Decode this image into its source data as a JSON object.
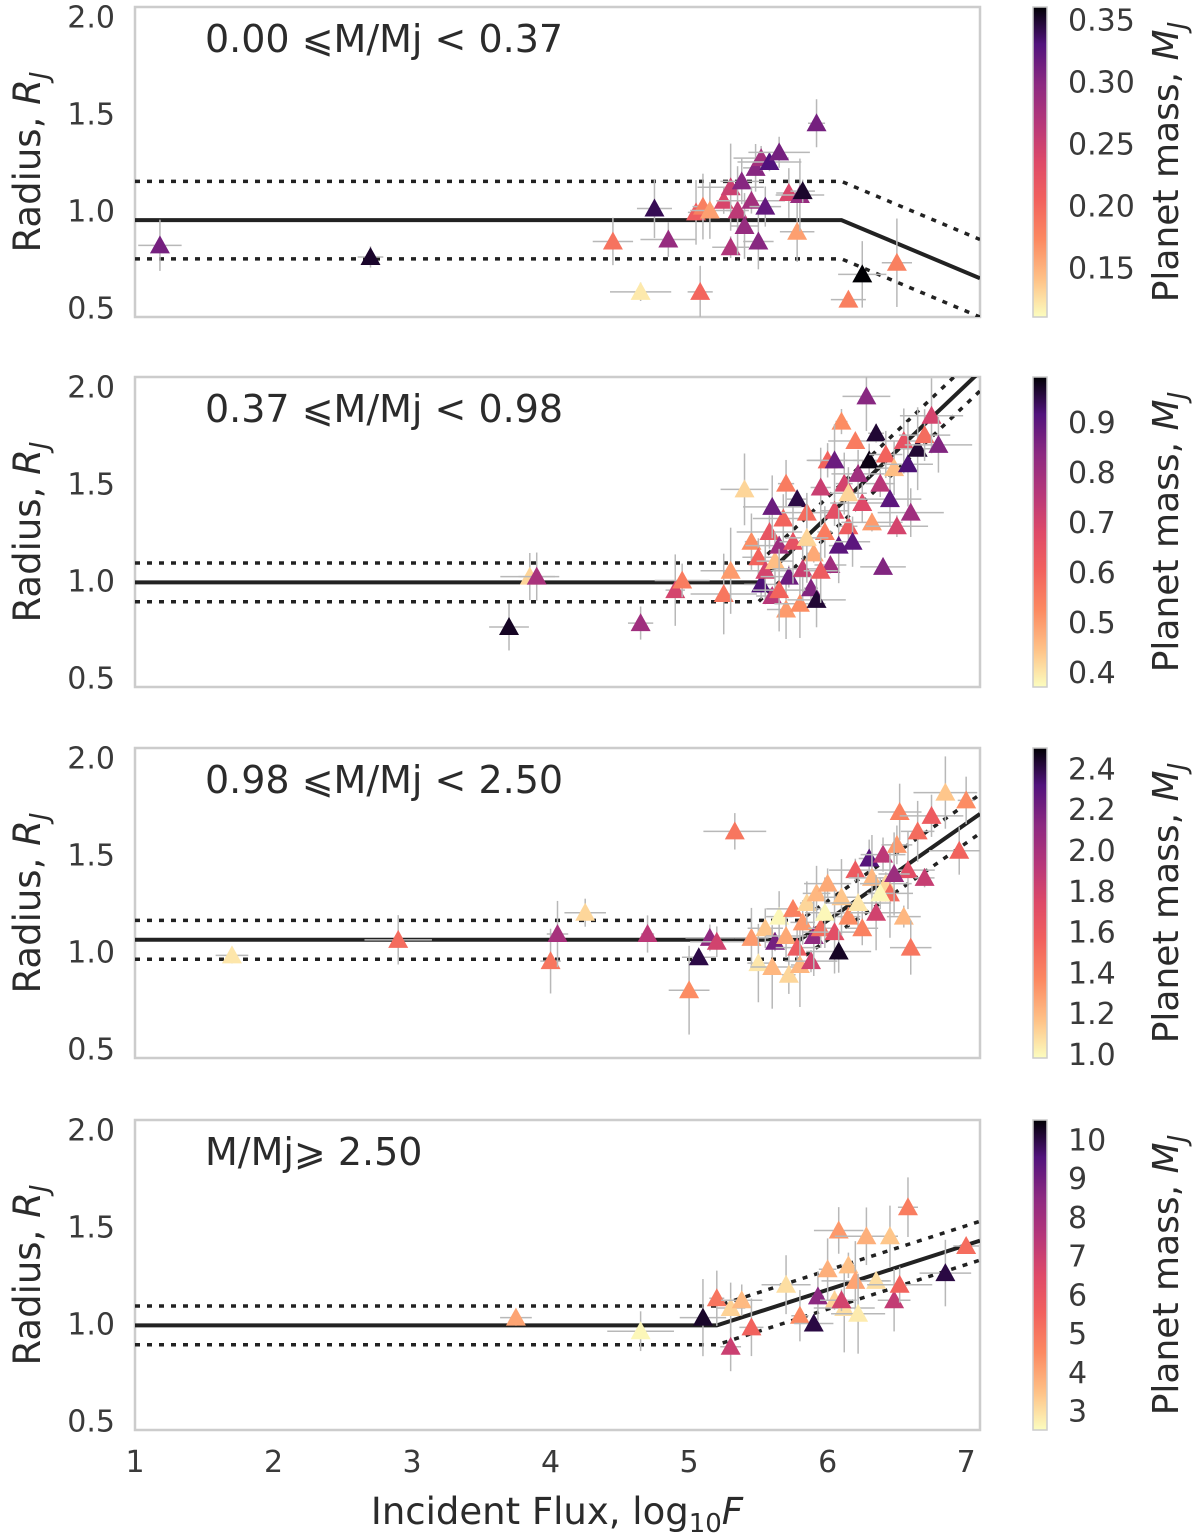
{
  "chart_data": [
    {
      "type": "scatter",
      "title": "0.00 ⩽M/Mj < 0.37",
      "xlabel": "Incident Flux, log10F",
      "ylabel": "Radius, RJ",
      "xlim": [
        1,
        7.1
      ],
      "ylim": [
        0.45,
        2.05
      ],
      "yticks": [
        "2.0",
        "1.5",
        "1.0",
        "0.5"
      ],
      "yticks_values": [
        2.0,
        1.5,
        1.0,
        0.5
      ],
      "colorbar_label": "Planet mass, MJ",
      "colorbar_range": [
        0.11,
        0.36
      ],
      "colorbar_ticks": [
        "0.35",
        "0.30",
        "0.25",
        "0.20",
        "0.15"
      ],
      "colorbar_ticks_values": [
        0.35,
        0.3,
        0.25,
        0.2,
        0.15
      ],
      "fit": {
        "break_x": 6.1,
        "level": 0.95,
        "slope": -0.3,
        "band": 0.2
      },
      "points": [
        [
          1.18,
          0.82,
          0.31
        ],
        [
          2.7,
          0.76,
          0.35
        ],
        [
          4.45,
          0.84,
          0.19
        ],
        [
          4.65,
          0.58,
          0.12
        ],
        [
          4.75,
          1.01,
          0.34
        ],
        [
          4.85,
          0.85,
          0.29
        ],
        [
          5.05,
          0.99,
          0.21
        ],
        [
          5.08,
          0.58,
          0.2
        ],
        [
          5.1,
          1.02,
          0.18
        ],
        [
          5.15,
          1.0,
          0.16
        ],
        [
          5.25,
          1.05,
          0.24
        ],
        [
          5.3,
          1.12,
          0.25
        ],
        [
          5.3,
          0.81,
          0.27
        ],
        [
          5.35,
          1.0,
          0.26
        ],
        [
          5.38,
          1.15,
          0.3
        ],
        [
          5.4,
          0.92,
          0.29
        ],
        [
          5.45,
          1.05,
          0.28
        ],
        [
          5.48,
          1.22,
          0.3
        ],
        [
          5.5,
          0.84,
          0.3
        ],
        [
          5.52,
          1.27,
          0.28
        ],
        [
          5.55,
          1.02,
          0.32
        ],
        [
          5.58,
          1.25,
          0.33
        ],
        [
          5.65,
          1.3,
          0.31
        ],
        [
          5.72,
          1.09,
          0.24
        ],
        [
          5.78,
          0.89,
          0.16
        ],
        [
          5.8,
          1.08,
          0.29
        ],
        [
          5.82,
          1.1,
          0.35
        ],
        [
          5.92,
          1.45,
          0.31
        ],
        [
          6.15,
          0.54,
          0.18
        ],
        [
          6.25,
          0.67,
          0.36
        ],
        [
          6.5,
          0.73,
          0.18
        ]
      ]
    },
    {
      "type": "scatter",
      "title": "0.37 ⩽M/Mj < 0.98",
      "xlabel": "Incident Flux, log10F",
      "ylabel": "Radius, RJ",
      "xlim": [
        1,
        7.1
      ],
      "ylim": [
        0.45,
        2.05
      ],
      "yticks": [
        "2.0",
        "1.5",
        "1.0",
        "0.5"
      ],
      "yticks_values": [
        2.0,
        1.5,
        1.0,
        0.5
      ],
      "colorbar_label": "Planet mass, MJ",
      "colorbar_range": [
        0.37,
        0.99
      ],
      "colorbar_ticks": [
        "0.9",
        "0.8",
        "0.7",
        "0.6",
        "0.5",
        "0.4"
      ],
      "colorbar_ticks_values": [
        0.9,
        0.8,
        0.7,
        0.6,
        0.5,
        0.4
      ],
      "fit": {
        "break_x": 5.5,
        "level": 0.99,
        "slope": 0.68,
        "band": 0.1
      },
      "points": [
        [
          3.7,
          0.76,
          0.97
        ],
        [
          3.85,
          1.02,
          0.42
        ],
        [
          3.9,
          1.02,
          0.78
        ],
        [
          4.65,
          0.78,
          0.8
        ],
        [
          4.9,
          0.95,
          0.7
        ],
        [
          4.95,
          1.0,
          0.55
        ],
        [
          5.25,
          0.93,
          0.56
        ],
        [
          5.3,
          1.05,
          0.5
        ],
        [
          5.4,
          1.47,
          0.42
        ],
        [
          5.45,
          1.2,
          0.52
        ],
        [
          5.5,
          1.12,
          0.6
        ],
        [
          5.52,
          0.98,
          0.92
        ],
        [
          5.55,
          1.05,
          0.7
        ],
        [
          5.58,
          1.25,
          0.64
        ],
        [
          5.6,
          0.92,
          0.75
        ],
        [
          5.62,
          1.1,
          0.45
        ],
        [
          5.65,
          1.18,
          0.8
        ],
        [
          5.68,
          1.32,
          0.6
        ],
        [
          5.7,
          0.85,
          0.5
        ],
        [
          5.72,
          1.02,
          0.88
        ],
        [
          5.75,
          1.2,
          0.65
        ],
        [
          5.78,
          1.42,
          0.95
        ],
        [
          5.8,
          0.88,
          0.52
        ],
        [
          5.82,
          1.06,
          0.72
        ],
        [
          5.85,
          1.35,
          0.58
        ],
        [
          5.88,
          0.96,
          0.85
        ],
        [
          5.9,
          1.14,
          0.48
        ],
        [
          5.92,
          0.9,
          0.96
        ],
        [
          5.95,
          1.48,
          0.72
        ],
        [
          5.98,
          1.25,
          0.55
        ],
        [
          6.0,
          1.62,
          0.6
        ],
        [
          6.02,
          1.08,
          0.8
        ],
        [
          6.05,
          1.36,
          0.66
        ],
        [
          6.08,
          1.18,
          0.9
        ],
        [
          6.1,
          1.82,
          0.52
        ],
        [
          6.12,
          1.5,
          0.7
        ],
        [
          6.15,
          1.28,
          0.62
        ],
        [
          6.18,
          1.2,
          0.9
        ],
        [
          6.2,
          1.72,
          0.55
        ],
        [
          6.22,
          1.55,
          0.8
        ],
        [
          6.25,
          1.4,
          0.68
        ],
        [
          6.28,
          1.95,
          0.84
        ],
        [
          6.3,
          1.62,
          0.98
        ],
        [
          6.32,
          1.3,
          0.5
        ],
        [
          6.35,
          1.76,
          0.96
        ],
        [
          6.38,
          1.5,
          0.75
        ],
        [
          6.4,
          1.07,
          0.85
        ],
        [
          6.42,
          1.65,
          0.6
        ],
        [
          6.45,
          1.42,
          0.9
        ],
        [
          6.48,
          1.58,
          0.45
        ],
        [
          6.5,
          1.28,
          0.7
        ],
        [
          6.55,
          1.72,
          0.65
        ],
        [
          6.58,
          1.6,
          0.92
        ],
        [
          6.6,
          1.35,
          0.8
        ],
        [
          6.65,
          1.68,
          0.96
        ],
        [
          6.7,
          1.75,
          0.58
        ],
        [
          6.75,
          1.85,
          0.7
        ],
        [
          6.8,
          1.7,
          0.85
        ],
        [
          5.6,
          1.38,
          0.88
        ],
        [
          5.7,
          1.5,
          0.55
        ],
        [
          5.85,
          1.22,
          0.42
        ],
        [
          5.95,
          1.05,
          0.62
        ],
        [
          6.05,
          1.62,
          0.88
        ],
        [
          6.15,
          1.45,
          0.42
        ],
        [
          5.65,
          0.95,
          0.6
        ]
      ]
    },
    {
      "type": "scatter",
      "title": "0.98 ⩽M/Mj < 2.50",
      "xlabel": "Incident Flux, log10F",
      "ylabel": "Radius, RJ",
      "xlim": [
        1,
        7.1
      ],
      "ylim": [
        0.45,
        2.05
      ],
      "yticks": [
        "2.0",
        "1.5",
        "1.0",
        "0.5"
      ],
      "yticks_values": [
        2.0,
        1.5,
        1.0,
        0.5
      ],
      "colorbar_label": "Planet mass, MJ",
      "colorbar_range": [
        0.98,
        2.5
      ],
      "colorbar_ticks": [
        "2.4",
        "2.2",
        "2.0",
        "1.8",
        "1.6",
        "1.4",
        "1.2",
        "1.0"
      ],
      "colorbar_ticks_values": [
        2.4,
        2.2,
        2.0,
        1.8,
        1.6,
        1.4,
        1.2,
        1.0
      ],
      "fit": {
        "break_x": 5.8,
        "level": 1.06,
        "slope": 0.5,
        "band": 0.1
      },
      "points": [
        [
          1.7,
          0.98,
          1.05
        ],
        [
          2.9,
          1.06,
          1.5
        ],
        [
          4.0,
          0.95,
          1.45
        ],
        [
          4.05,
          1.09,
          2.0
        ],
        [
          4.25,
          1.2,
          1.1
        ],
        [
          4.7,
          1.09,
          1.9
        ],
        [
          5.0,
          0.8,
          1.35
        ],
        [
          5.07,
          0.97,
          2.4
        ],
        [
          5.15,
          1.07,
          2.1
        ],
        [
          5.2,
          1.05,
          1.8
        ],
        [
          5.33,
          1.62,
          1.45
        ],
        [
          5.45,
          1.07,
          1.3
        ],
        [
          5.5,
          0.94,
          1.05
        ],
        [
          5.55,
          1.12,
          1.15
        ],
        [
          5.6,
          0.92,
          1.2
        ],
        [
          5.62,
          1.05,
          2.2
        ],
        [
          5.65,
          1.18,
          1.0
        ],
        [
          5.7,
          1.08,
          1.25
        ],
        [
          5.72,
          0.88,
          1.1
        ],
        [
          5.75,
          1.22,
          1.4
        ],
        [
          5.78,
          1.02,
          1.6
        ],
        [
          5.8,
          0.93,
          1.2
        ],
        [
          5.82,
          1.15,
          1.3
        ],
        [
          5.85,
          1.25,
          1.1
        ],
        [
          5.88,
          0.95,
          1.8
        ],
        [
          5.9,
          1.08,
          2.1
        ],
        [
          5.92,
          1.3,
          1.2
        ],
        [
          5.95,
          1.12,
          1.5
        ],
        [
          5.98,
          1.2,
          1.0
        ],
        [
          6.0,
          1.35,
          1.25
        ],
        [
          6.05,
          1.1,
          1.7
        ],
        [
          6.08,
          1.0,
          2.45
        ],
        [
          6.1,
          1.28,
          1.15
        ],
        [
          6.15,
          1.18,
          1.35
        ],
        [
          6.2,
          1.42,
          1.6
        ],
        [
          6.22,
          1.25,
          1.05
        ],
        [
          6.25,
          1.12,
          1.4
        ],
        [
          6.3,
          1.48,
          2.3
        ],
        [
          6.32,
          1.38,
          1.2
        ],
        [
          6.35,
          1.2,
          1.8
        ],
        [
          6.4,
          1.5,
          1.9
        ],
        [
          6.42,
          1.35,
          1.1
        ],
        [
          6.45,
          1.3,
          1.5
        ],
        [
          6.5,
          1.55,
          1.3
        ],
        [
          6.52,
          1.72,
          1.4
        ],
        [
          6.55,
          1.18,
          1.2
        ],
        [
          6.58,
          1.42,
          1.7
        ],
        [
          6.6,
          1.02,
          1.45
        ],
        [
          6.65,
          1.62,
          1.5
        ],
        [
          6.7,
          1.38,
          1.85
        ],
        [
          6.75,
          1.7,
          1.6
        ],
        [
          6.85,
          1.82,
          1.15
        ],
        [
          6.95,
          1.52,
          1.55
        ],
        [
          7.0,
          1.78,
          1.35
        ],
        [
          6.48,
          1.4,
          2.05
        ],
        [
          6.38,
          1.3,
          1.0
        ]
      ]
    },
    {
      "type": "scatter",
      "title": "M/Mj⩾ 2.50",
      "xlabel": "Incident Flux, log10F",
      "ylabel": "Radius, RJ",
      "xlim": [
        1,
        7.1
      ],
      "ylim": [
        0.45,
        2.05
      ],
      "yticks": [
        "2.0",
        "1.5",
        "1.0",
        "0.5"
      ],
      "yticks_values": [
        2.0,
        1.5,
        1.0,
        0.5
      ],
      "xticks": [
        "1",
        "2",
        "3",
        "4",
        "5",
        "6",
        "7"
      ],
      "xticks_values": [
        1,
        2,
        3,
        4,
        5,
        6,
        7
      ],
      "colorbar_label": "Planet mass, MJ",
      "colorbar_range": [
        2.5,
        10.5
      ],
      "colorbar_ticks": [
        "10",
        "9",
        "8",
        "7",
        "6",
        "5",
        "4",
        "3"
      ],
      "colorbar_ticks_values": [
        10,
        9,
        8,
        7,
        6,
        5,
        4,
        3
      ],
      "fit": {
        "break_x": 5.2,
        "level": 0.99,
        "slope": 0.23,
        "band": 0.1
      },
      "points": [
        [
          3.75,
          1.03,
          4.0
        ],
        [
          4.65,
          0.96,
          2.6
        ],
        [
          5.1,
          1.03,
          10.2
        ],
        [
          5.2,
          1.13,
          5.0
        ],
        [
          5.3,
          0.88,
          7.0
        ],
        [
          5.3,
          1.08,
          3.2
        ],
        [
          5.38,
          1.12,
          3.6
        ],
        [
          5.45,
          0.98,
          5.5
        ],
        [
          5.7,
          1.2,
          3.0
        ],
        [
          5.8,
          1.04,
          4.5
        ],
        [
          5.9,
          1.0,
          10.0
        ],
        [
          5.93,
          1.14,
          8.5
        ],
        [
          6.0,
          1.28,
          3.8
        ],
        [
          6.05,
          1.12,
          3.2
        ],
        [
          6.08,
          1.48,
          4.2
        ],
        [
          6.12,
          1.08,
          3.0
        ],
        [
          6.15,
          1.3,
          3.5
        ],
        [
          6.2,
          1.22,
          4.0
        ],
        [
          6.22,
          1.05,
          2.8
        ],
        [
          6.28,
          1.45,
          3.8
        ],
        [
          6.35,
          1.22,
          3.0
        ],
        [
          6.45,
          1.45,
          3.4
        ],
        [
          6.48,
          1.12,
          7.2
        ],
        [
          6.52,
          1.2,
          5.5
        ],
        [
          6.58,
          1.6,
          4.8
        ],
        [
          6.85,
          1.26,
          10.0
        ],
        [
          7.0,
          1.4,
          5.2
        ],
        [
          6.1,
          1.12,
          6.8
        ]
      ]
    }
  ]
}
